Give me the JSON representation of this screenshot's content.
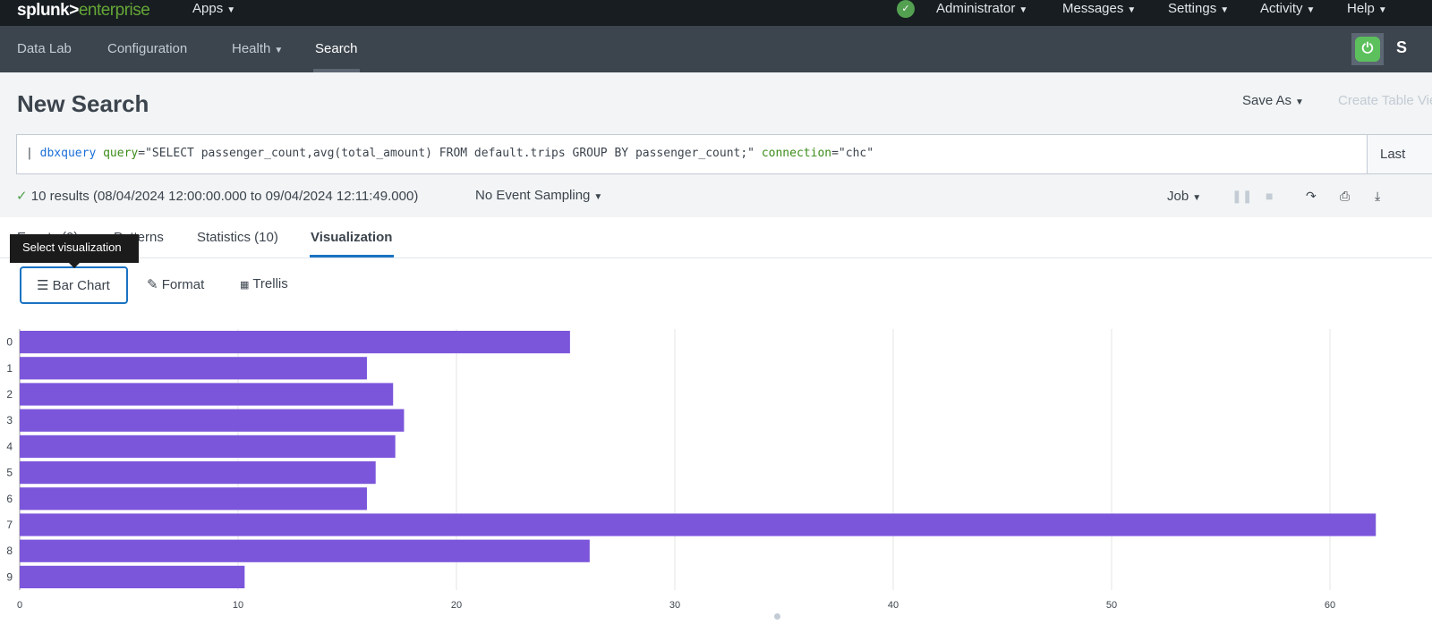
{
  "topbar": {
    "logo_a": "splunk>",
    "logo_b": "enterprise",
    "apps": "Apps",
    "items": [
      "Administrator",
      "Messages",
      "Settings",
      "Activity",
      "Help"
    ]
  },
  "nav": {
    "items": [
      "Data Lab",
      "Configuration",
      "Health",
      "Search"
    ],
    "active": "Search",
    "app_initial": "S"
  },
  "header": {
    "title": "New Search",
    "save_as": "Save As",
    "create_table": "Create Table View"
  },
  "search": {
    "pipe": "| ",
    "command": "dbxquery",
    "query_key": "query",
    "query_val": "=\"SELECT passenger_count,avg(total_amount) FROM default.trips GROUP BY passenger_count;\" ",
    "conn_key": "connection",
    "conn_val": "=\"chc\"",
    "time_range": "Last"
  },
  "status": {
    "check": "✓",
    "results": "10 results (08/04/2024 12:00:00.000 to 09/04/2024 12:11:49.000)",
    "sampling": "No Event Sampling",
    "job": "Job"
  },
  "tabs": {
    "items": [
      "Events (0)",
      "Patterns",
      "Statistics (10)",
      "Visualization"
    ],
    "active": "Visualization"
  },
  "tooltip": "Select visualization",
  "viz_toolbar": {
    "bar_chart": "Bar Chart",
    "format": "Format",
    "trellis": "Trellis"
  },
  "colors": {
    "bar": "#7b56db",
    "accent": "#1a73c2",
    "ok": "#53a051"
  },
  "chart_data": {
    "type": "bar",
    "orientation": "horizontal",
    "categories": [
      "0",
      "1",
      "2",
      "3",
      "4",
      "5",
      "6",
      "7",
      "8",
      "9"
    ],
    "values": [
      25.2,
      15.9,
      17.1,
      17.6,
      17.2,
      16.3,
      15.9,
      62.1,
      26.1,
      10.3
    ],
    "xlim": [
      0,
      62.5
    ],
    "xticks": [
      0,
      10,
      20,
      30,
      40,
      50,
      60
    ],
    "grid": true,
    "title": "",
    "xlabel": "",
    "ylabel": ""
  }
}
